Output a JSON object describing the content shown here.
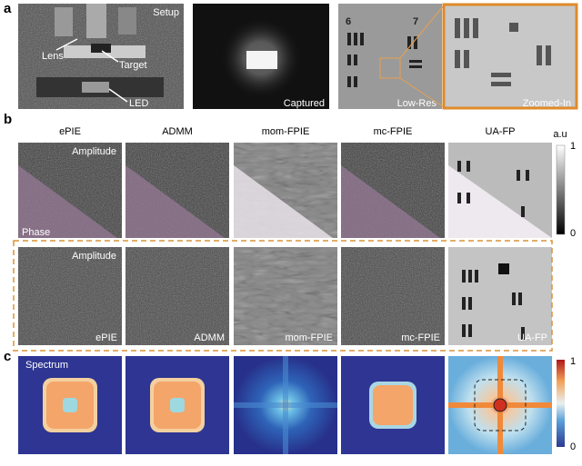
{
  "panel_a": {
    "label": "a",
    "setup": "Setup",
    "lens": "Lens",
    "target": "Target",
    "led": "LED",
    "captured": "Captured",
    "low_res": "Low-Res",
    "zoomed_in": "Zoomed-In"
  },
  "panel_b": {
    "label": "b",
    "methods": [
      "ePIE",
      "ADMM",
      "mom-FPIE",
      "mc-FPIE",
      "UA-FP"
    ],
    "amplitude": "Amplitude",
    "phase": "Phase",
    "colorbar": {
      "unit": "a.u",
      "max": 1,
      "min": 0
    },
    "row2_amplitude": "Amplitude",
    "row2_labels": [
      "ePIE",
      "ADMM",
      "mom-FPIE",
      "mc-FPIE",
      "UA-FP"
    ]
  },
  "panel_c": {
    "label": "c",
    "spectrum": "Spectrum",
    "colorbar": {
      "max": 1,
      "min": 0
    }
  }
}
